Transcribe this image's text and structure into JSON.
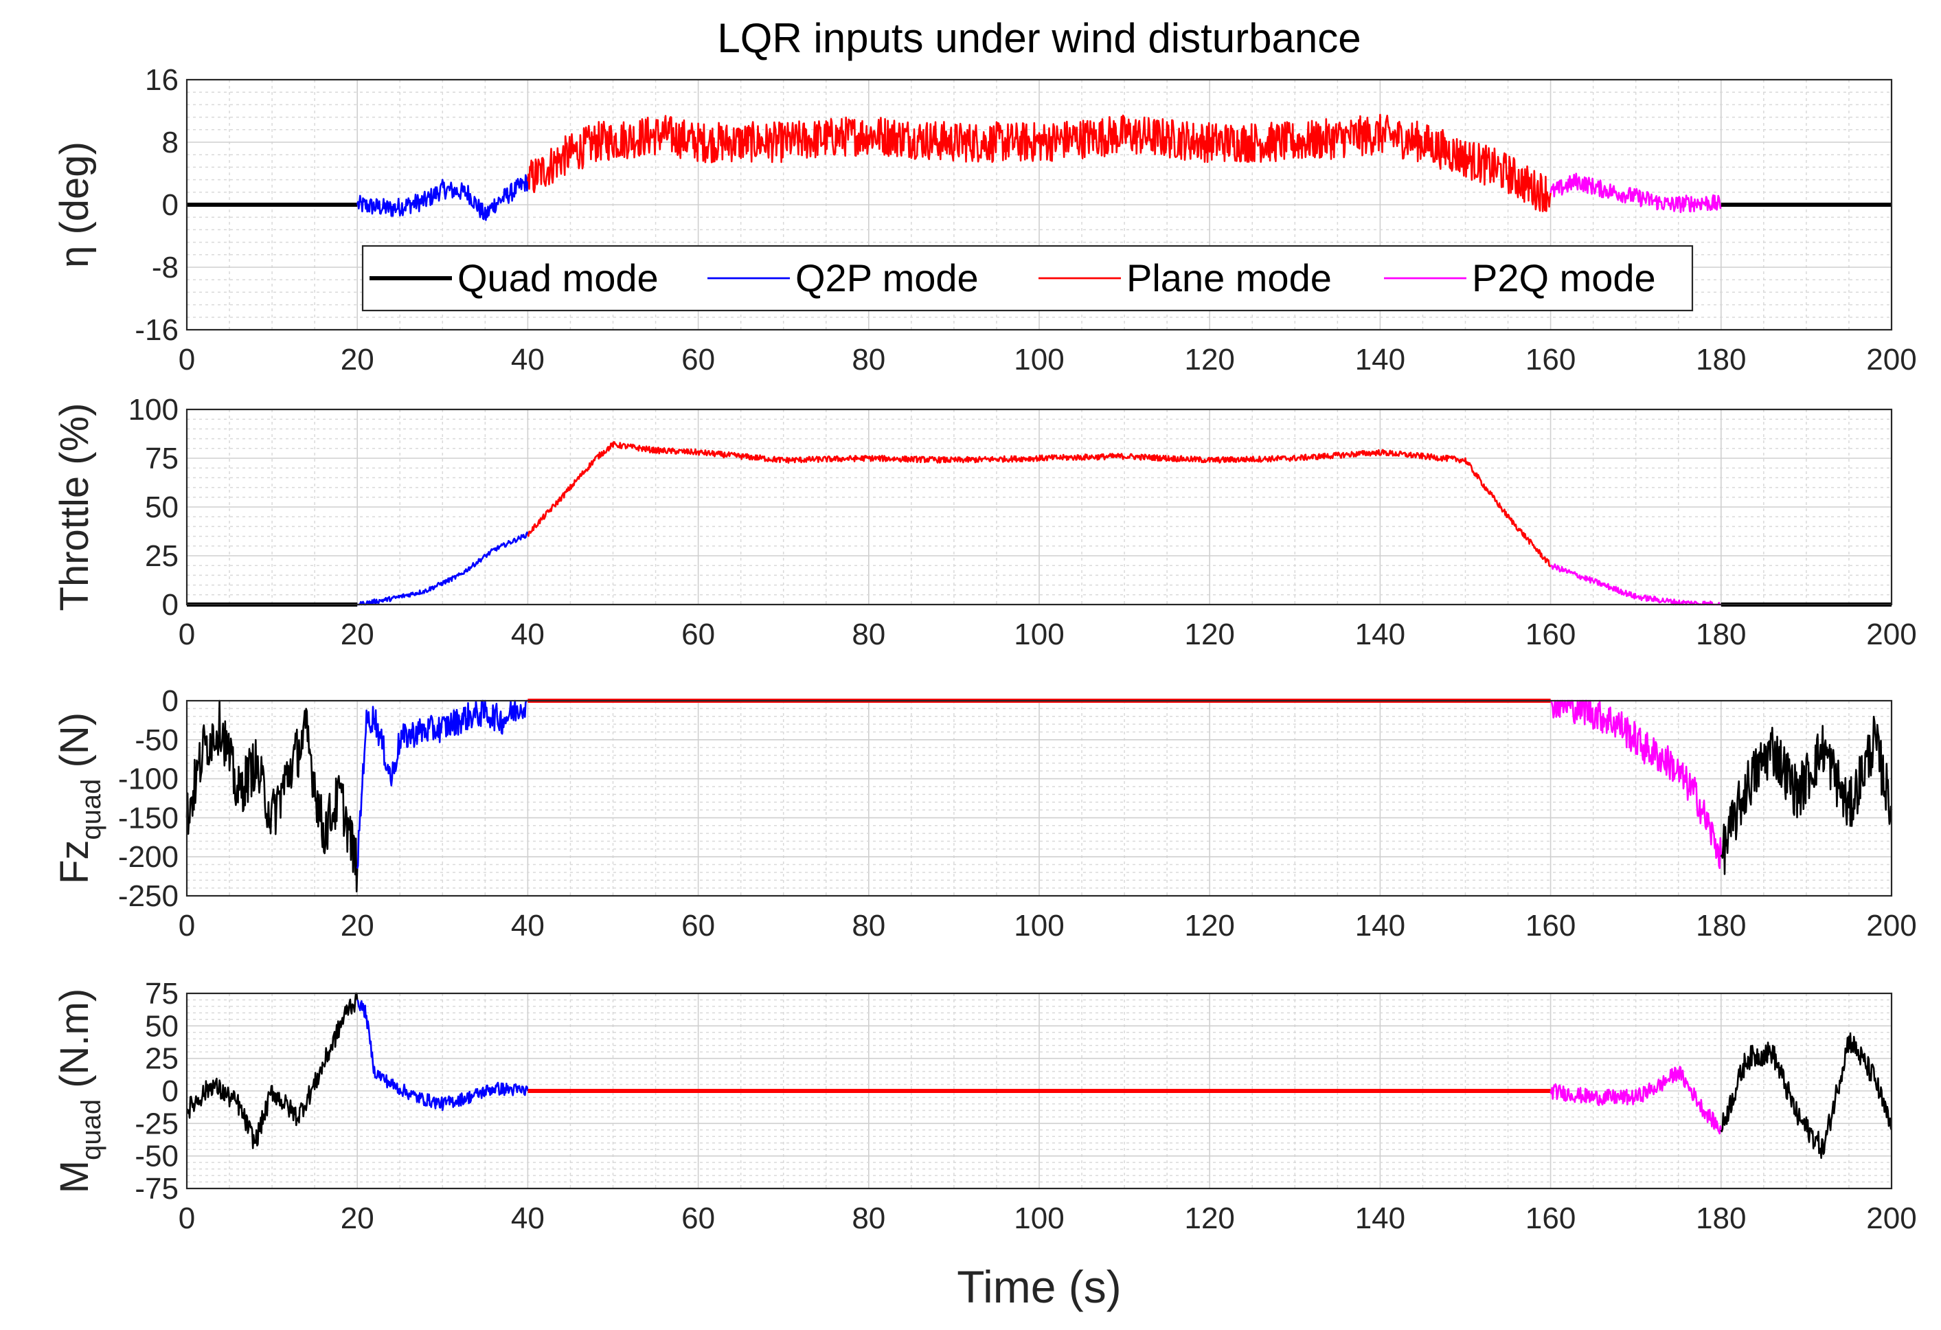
{
  "chart_data": {
    "type": "line",
    "title": "LQR inputs under wind disturbance",
    "xlabel": "Time (s)",
    "xlim": [
      0,
      200
    ],
    "xticks": [
      0,
      20,
      40,
      60,
      80,
      100,
      120,
      140,
      160,
      180,
      200
    ],
    "legend": {
      "location": "inside-bottom of top panel",
      "entries": [
        {
          "label": "Quad mode",
          "color": "#000000"
        },
        {
          "label": "Q2P mode",
          "color": "#0000ff"
        },
        {
          "label": "Plane mode",
          "color": "#ff0000"
        },
        {
          "label": "P2Q mode",
          "color": "#ff00ff"
        }
      ]
    },
    "segments": [
      {
        "mode": "Quad mode",
        "color": "#000000",
        "t_start": 0,
        "t_end": 20
      },
      {
        "mode": "Q2P mode",
        "color": "#0000ff",
        "t_start": 20,
        "t_end": 40
      },
      {
        "mode": "Plane mode",
        "color": "#ff0000",
        "t_start": 40,
        "t_end": 160
      },
      {
        "mode": "P2Q mode",
        "color": "#ff00ff",
        "t_start": 160,
        "t_end": 180
      },
      {
        "mode": "Quad mode",
        "color": "#000000",
        "t_start": 180,
        "t_end": 200
      }
    ],
    "panels": [
      {
        "name": "eta",
        "ylabel_main": "η (deg)",
        "ylabel_sub": "",
        "ylim": [
          -16,
          16
        ],
        "yticks": [
          16,
          8,
          0,
          -8,
          -16
        ],
        "series": [
          {
            "mode": "Quad mode",
            "t": [
              0,
              20
            ],
            "y": [
              0,
              0
            ],
            "noise": 0
          },
          {
            "mode": "Q2P mode",
            "t": [
              20,
              24,
              28,
              30,
              33,
              35,
              36,
              38,
              40
            ],
            "y": [
              0,
              -0.5,
              0.5,
              2,
              1.5,
              -1.5,
              0,
              1.5,
              3
            ],
            "noise": 1.2
          },
          {
            "mode": "Plane mode",
            "t": [
              40,
              44,
              48,
              52,
              56,
              60,
              70,
              80,
              90,
              100,
              110,
              120,
              130,
              140,
              145,
              150,
              155,
              158,
              160
            ],
            "y": [
              3,
              6,
              8,
              8.5,
              9,
              8,
              8,
              9,
              8,
              8,
              9,
              8,
              8,
              9,
              8,
              6,
              4,
              2,
              1.5
            ],
            "noise": 2.6
          },
          {
            "mode": "P2Q mode",
            "t": [
              160,
              163,
              166,
              170,
              174,
              178,
              180
            ],
            "y": [
              1.5,
              3,
              2,
              1,
              0,
              0.3,
              0
            ],
            "noise": 1.1
          },
          {
            "mode": "Quad mode",
            "t": [
              180,
              200
            ],
            "y": [
              0,
              0
            ],
            "noise": 0
          }
        ]
      },
      {
        "name": "throttle",
        "ylabel_main": "Throttle (%)",
        "ylabel_sub": "",
        "ylim": [
          0,
          100
        ],
        "yticks": [
          100,
          75,
          50,
          25,
          0
        ],
        "series": [
          {
            "mode": "Quad mode",
            "t": [
              0,
              20
            ],
            "y": [
              0,
              0
            ],
            "noise": 0
          },
          {
            "mode": "Q2P mode",
            "t": [
              20,
              24,
              28,
              32,
              36,
              40
            ],
            "y": [
              0,
              3,
              7,
              15,
              28,
              36
            ],
            "noise": 1.2
          },
          {
            "mode": "Plane mode",
            "t": [
              40,
              44,
              48,
              50,
              55,
              60,
              70,
              80,
              90,
              100,
              110,
              120,
              130,
              140,
              145,
              150,
              152,
              155,
              158,
              160
            ],
            "y": [
              36,
              55,
              75,
              82,
              79,
              78,
              74,
              75,
              74,
              75,
              76,
              74,
              75,
              78,
              76,
              74,
              62,
              45,
              30,
              20
            ],
            "noise": 1.5
          },
          {
            "mode": "P2Q mode",
            "t": [
              160,
              165,
              170,
              175,
              180
            ],
            "y": [
              20,
              12,
              4,
              1,
              0
            ],
            "noise": 1.5
          },
          {
            "mode": "Quad mode",
            "t": [
              180,
              200
            ],
            "y": [
              0,
              0
            ],
            "noise": 0
          }
        ]
      },
      {
        "name": "fz_quad",
        "ylabel_main": "Fz",
        "ylabel_sub": "quad",
        "ylabel_tail": " (N)",
        "ylim": [
          -250,
          0
        ],
        "yticks": [
          0,
          -50,
          -100,
          -150,
          -200,
          -250
        ],
        "series": [
          {
            "mode": "Quad mode",
            "t": [
              0,
              2,
              4,
              6,
              8,
              10,
              12,
              14,
              16,
              18,
              20
            ],
            "y": [
              -150,
              -60,
              -30,
              -120,
              -80,
              -150,
              -90,
              -40,
              -170,
              -120,
              -215
            ],
            "noise": 35
          },
          {
            "mode": "Q2P mode",
            "t": [
              20,
              21,
              22,
              24,
              25,
              27,
              30,
              33,
              35,
              37,
              40
            ],
            "y": [
              -215,
              -30,
              -20,
              -100,
              -50,
              -40,
              -35,
              -20,
              -15,
              -25,
              0
            ],
            "noise": 18
          },
          {
            "mode": "Plane mode",
            "t": [
              40,
              160
            ],
            "y": [
              0,
              0
            ],
            "noise": 0
          },
          {
            "mode": "P2Q mode",
            "t": [
              160,
              164,
              168,
              171,
              174,
              177,
              180
            ],
            "y": [
              0,
              -10,
              -30,
              -60,
              -80,
              -120,
              -200
            ],
            "noise": 22
          },
          {
            "mode": "Quad mode",
            "t": [
              180,
              183,
              186,
              189,
              192,
              195,
              198,
              200
            ],
            "y": [
              -200,
              -110,
              -60,
              -120,
              -60,
              -140,
              -50,
              -140
            ],
            "noise": 35
          }
        ]
      },
      {
        "name": "m_quad",
        "ylabel_main": "M",
        "ylabel_sub": "quad",
        "ylabel_tail": " (N.m)",
        "ylim": [
          -75,
          75
        ],
        "yticks": [
          75,
          50,
          25,
          0,
          -25,
          -50,
          -75
        ],
        "series": [
          {
            "mode": "Quad mode",
            "t": [
              0,
              3,
              6,
              8,
              10,
              13,
              15,
              17,
              19,
              20
            ],
            "y": [
              -15,
              5,
              -10,
              -40,
              0,
              -20,
              5,
              35,
              65,
              70
            ],
            "noise": 8
          },
          {
            "mode": "Q2P mode",
            "t": [
              20,
              21,
              22,
              24,
              27,
              30,
              33,
              36,
              40
            ],
            "y": [
              70,
              60,
              15,
              5,
              -5,
              -10,
              -5,
              2,
              0
            ],
            "noise": 5
          },
          {
            "mode": "Plane mode",
            "t": [
              40,
              160
            ],
            "y": [
              0,
              0
            ],
            "noise": 0
          },
          {
            "mode": "P2Q mode",
            "t": [
              160,
              165,
              170,
              173,
              175,
              178,
              180
            ],
            "y": [
              0,
              -5,
              -5,
              5,
              15,
              -15,
              -30
            ],
            "noise": 6
          },
          {
            "mode": "Quad mode",
            "t": [
              180,
              183,
              186,
              189,
              192,
              195,
              198,
              200
            ],
            "y": [
              -30,
              25,
              30,
              -20,
              -45,
              40,
              10,
              -30
            ],
            "noise": 9
          }
        ]
      }
    ]
  }
}
